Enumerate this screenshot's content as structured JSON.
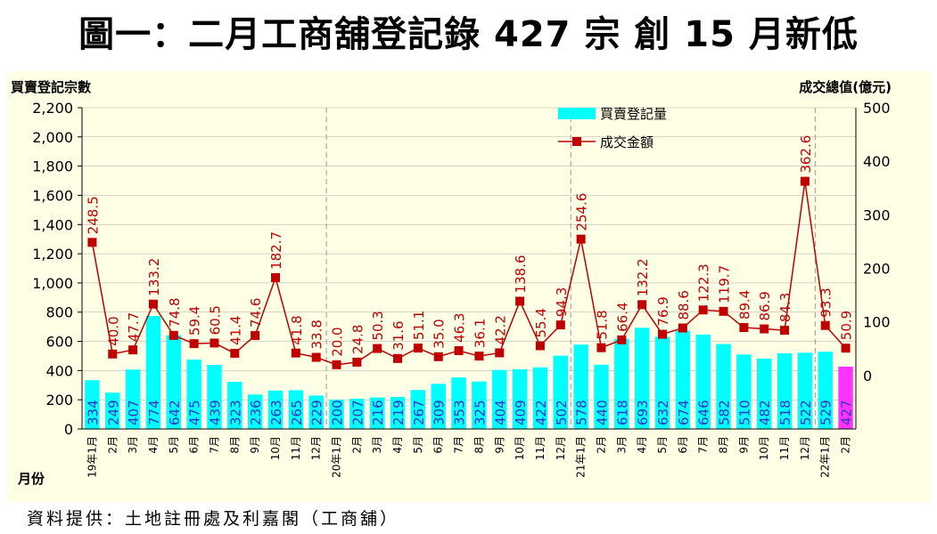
{
  "page": {
    "title": "圖一：二月工商舖登記錄 427 宗  創 15 月新低",
    "source": "資料提供：土地註冊處及利嘉閣（工商舖）"
  },
  "colors": {
    "background": "#ffffe6",
    "bar": "#00ffff",
    "bar_highlight": "#ff33ff",
    "line": "#c00000",
    "line_label": "#c00000",
    "bar_label": "#3333cc",
    "grid": "#aaaaaa"
  },
  "chart_data": {
    "type": "bar",
    "ylabel": "買賣登記宗數",
    "y2label": "成交總值(億元)",
    "xlabel": "月份",
    "ylim": [
      0,
      2200
    ],
    "y2lim": [
      -100,
      500
    ],
    "yticks": [
      "0",
      "200",
      "400",
      "600",
      "800",
      "1,000",
      "1,200",
      "1,400",
      "1,600",
      "1,800",
      "2,000",
      "2,200"
    ],
    "y2ticks": [
      "0",
      "100",
      "200",
      "300",
      "400",
      "500"
    ],
    "categories": [
      "19年1月",
      "2月",
      "3月",
      "4月",
      "5月",
      "6月",
      "7月",
      "8月",
      "9月",
      "10月",
      "11月",
      "12月",
      "20年1月",
      "2月",
      "3月",
      "4月",
      "5月",
      "6月",
      "7月",
      "8月",
      "9月",
      "10月",
      "11月",
      "12月",
      "21年1月",
      "2月",
      "3月",
      "4月",
      "5月",
      "6月",
      "7月",
      "8月",
      "9月",
      "10月",
      "11月",
      "12月",
      "22年1月",
      "2月"
    ],
    "series": [
      {
        "name": "買賣登記量",
        "type": "bar",
        "values": [
          334,
          249,
          407,
          774,
          642,
          475,
          439,
          323,
          236,
          263,
          265,
          229,
          200,
          207,
          216,
          219,
          267,
          309,
          353,
          325,
          404,
          409,
          422,
          502,
          578,
          440,
          618,
          693,
          632,
          674,
          646,
          582,
          510,
          482,
          518,
          522,
          529,
          427
        ]
      },
      {
        "name": "成交金額",
        "type": "line",
        "values": [
          248.5,
          40.0,
          47.7,
          133.2,
          74.8,
          59.4,
          60.5,
          41.4,
          74.6,
          182.7,
          41.8,
          33.8,
          20.0,
          24.8,
          50.3,
          31.6,
          51.1,
          35.0,
          46.3,
          36.1,
          42.2,
          138.6,
          55.4,
          94.3,
          254.6,
          51.8,
          66.4,
          132.2,
          76.9,
          88.6,
          122.3,
          119.7,
          89.4,
          86.9,
          84.3,
          362.6,
          93.3,
          50.9
        ],
        "labels": [
          "248.5",
          "40.0",
          "47.7",
          "133.2",
          "74.8",
          "59.4",
          "60.5",
          "41.4",
          "74.6",
          "182.7",
          "41.8",
          "33.8",
          "20.0",
          "24.8",
          "50.3",
          "31.6",
          "51.1",
          "35.0",
          "46.3",
          "36.1",
          "42.2",
          "138.6",
          "55.4",
          "94.3",
          "254.6",
          "51.8",
          "66.4",
          "132.2",
          "76.9",
          "88.6",
          "122.3",
          "119.7",
          "89.4",
          "86.9",
          "84.3",
          "362.6",
          "93.3",
          "50.9"
        ]
      }
    ],
    "highlight_index": 37,
    "year_dividers_after": [
      11,
      23,
      35
    ],
    "legend": [
      "買賣登記量",
      "成交金額"
    ]
  }
}
